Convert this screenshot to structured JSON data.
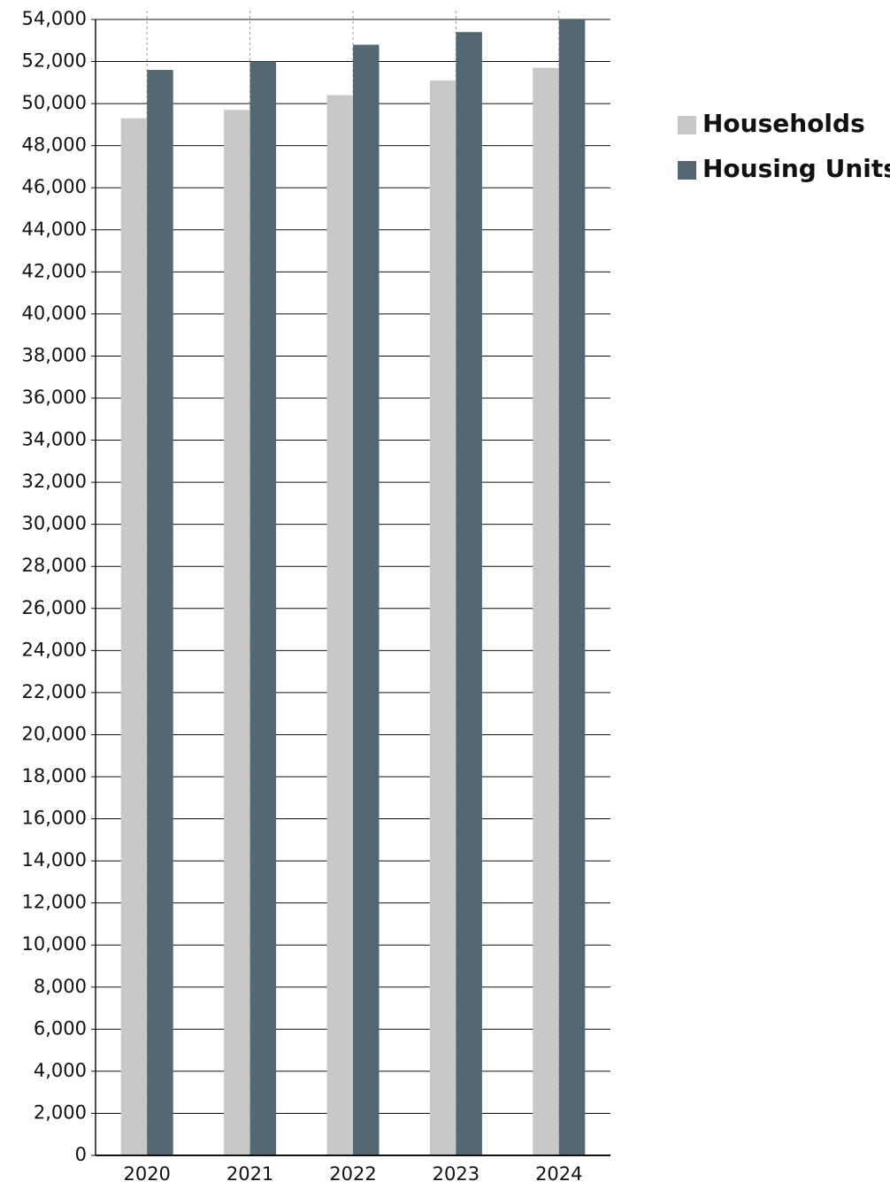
{
  "chart_data": {
    "type": "bar",
    "categories": [
      "2020",
      "2021",
      "2022",
      "2023",
      "2024"
    ],
    "series": [
      {
        "name": "Households",
        "color": "#c8c8c6",
        "values": [
          49300,
          49700,
          50400,
          51100,
          51700
        ]
      },
      {
        "name": "Housing Units",
        "color": "#536873",
        "values": [
          51600,
          52000,
          52800,
          53400,
          54000
        ]
      }
    ],
    "ylim": [
      0,
      54000
    ],
    "yticks": [
      0,
      {
        "value": 2000,
        "label": "2,000"
      },
      {
        "value": 4000,
        "label": "4,000"
      },
      {
        "value": 6000,
        "label": "6,000"
      },
      {
        "value": 8000,
        "label": "8,000"
      },
      {
        "value": 10000,
        "label": "10,000"
      },
      {
        "value": 12000,
        "label": "12,000"
      },
      {
        "value": 14000,
        "label": "14,000"
      },
      {
        "value": 16000,
        "label": "16,000"
      },
      {
        "value": 18000,
        "label": "18,000"
      },
      {
        "value": 20000,
        "label": "20,000"
      },
      {
        "value": 22000,
        "label": "22,000"
      },
      {
        "value": 24000,
        "label": "24,000"
      },
      {
        "value": 26000,
        "label": "26,000"
      },
      {
        "value": 28000,
        "label": "28,000"
      },
      {
        "value": 30000,
        "label": "30,000"
      },
      {
        "value": 32000,
        "label": "32,000"
      },
      {
        "value": 34000,
        "label": "34,000"
      },
      {
        "value": 36000,
        "label": "36,000"
      },
      {
        "value": 38000,
        "label": "38,000"
      },
      {
        "value": 40000,
        "label": "40,000"
      },
      {
        "value": 42000,
        "label": "42,000"
      },
      {
        "value": 44000,
        "label": "44,000"
      },
      {
        "value": 46000,
        "label": "46,000"
      },
      {
        "value": 48000,
        "label": "48,000"
      },
      {
        "value": 50000,
        "label": "50,000"
      },
      {
        "value": 52000,
        "label": "52,000"
      },
      {
        "value": 54000,
        "label": "54,000"
      }
    ],
    "grid": true,
    "legend": "right"
  }
}
